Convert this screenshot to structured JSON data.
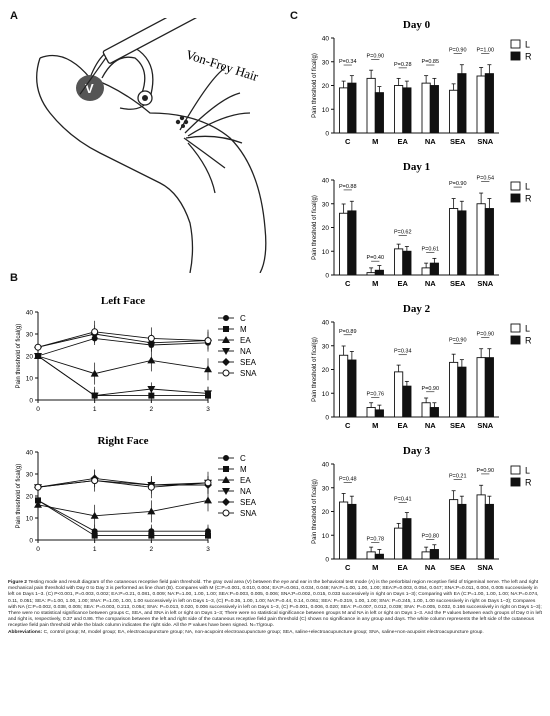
{
  "panels": {
    "A": "A",
    "B": "B",
    "C": "C"
  },
  "illustration": {
    "instrument_label": "Von-Frey Hair",
    "area_label": "V"
  },
  "panel_b": {
    "ylabel": "Pain threshold of ficial(g)",
    "legend": [
      "C",
      "M",
      "EA",
      "NA",
      "SEA",
      "SNA"
    ]
  },
  "chart_data": [
    {
      "type": "line",
      "title": "Left Face",
      "ylabel": "Pain threshold of fical(g)",
      "x": [
        0,
        1,
        2,
        3
      ],
      "ylim": [
        0,
        40
      ],
      "yticks": [
        0,
        10,
        20,
        30,
        40
      ],
      "xticks": [
        0,
        1,
        2,
        3
      ],
      "series": [
        {
          "name": "C",
          "values": [
            20,
            28,
            25,
            26
          ]
        },
        {
          "name": "M",
          "values": [
            20,
            2,
            2,
            2
          ]
        },
        {
          "name": "EA",
          "values": [
            20,
            12,
            18,
            14
          ]
        },
        {
          "name": "NA",
          "values": [
            20,
            2,
            5,
            3
          ]
        },
        {
          "name": "SEA",
          "values": [
            24,
            30,
            26,
            27
          ]
        },
        {
          "name": "SNA",
          "values": [
            24,
            31,
            28,
            27
          ]
        }
      ]
    },
    {
      "type": "line",
      "title": "Right Face",
      "ylabel": "Pain threshold of fical(g)",
      "x": [
        0,
        1,
        2,
        3
      ],
      "ylim": [
        0,
        40
      ],
      "yticks": [
        0,
        10,
        20,
        30,
        40
      ],
      "xticks": [
        0,
        1,
        2,
        3
      ],
      "series": [
        {
          "name": "C",
          "values": [
            18,
            4,
            4,
            4
          ]
        },
        {
          "name": "M",
          "values": [
            18,
            2,
            2,
            2
          ]
        },
        {
          "name": "EA",
          "values": [
            16,
            11,
            13,
            18
          ]
        },
        {
          "name": "NA",
          "values": [
            24,
            27,
            25,
            26
          ]
        },
        {
          "name": "SEA",
          "values": [
            24,
            28,
            25,
            25
          ]
        },
        {
          "name": "SNA",
          "values": [
            24,
            27,
            24,
            26
          ]
        }
      ]
    },
    {
      "type": "bar",
      "title": "Day 0",
      "ylabel": "Pain threshold of fical(g)",
      "categories": [
        "C",
        "M",
        "EA",
        "NA",
        "SEA",
        "SNA"
      ],
      "series": [
        {
          "name": "L",
          "values": [
            19,
            23,
            20,
            21,
            18,
            24
          ]
        },
        {
          "name": "R",
          "values": [
            21,
            17,
            19,
            20,
            25,
            25
          ]
        }
      ],
      "pvalues": [
        "P=0.34",
        "P=0.90",
        "P=0.28",
        "P=0.85",
        "P=0.90",
        "P=1.00"
      ],
      "ylim": [
        0,
        40
      ],
      "yticks": [
        0,
        10,
        20,
        30,
        40
      ]
    },
    {
      "type": "bar",
      "title": "Day 1",
      "ylabel": "Pain threshold of fical(g)",
      "categories": [
        "C",
        "M",
        "EA",
        "NA",
        "SEA",
        "SNA"
      ],
      "series": [
        {
          "name": "L",
          "values": [
            26,
            1,
            11,
            3,
            28,
            30
          ]
        },
        {
          "name": "R",
          "values": [
            27,
            2,
            10,
            5,
            27,
            28
          ]
        }
      ],
      "pvalues": [
        "P=0.88",
        "P=0.40",
        "P=0.62",
        "P=0.61",
        "P=0.90",
        "P=0.54"
      ],
      "ylim": [
        0,
        40
      ],
      "yticks": [
        0,
        10,
        20,
        30,
        40
      ]
    },
    {
      "type": "bar",
      "title": "Day 2",
      "ylabel": "Pain threshold of fical(g)",
      "categories": [
        "C",
        "M",
        "EA",
        "NA",
        "SEA",
        "SNA"
      ],
      "series": [
        {
          "name": "L",
          "values": [
            26,
            4,
            19,
            6,
            23,
            25
          ]
        },
        {
          "name": "R",
          "values": [
            24,
            3,
            13,
            4,
            21,
            25
          ]
        }
      ],
      "pvalues": [
        "P=0.89",
        "P=0.76",
        "P=0.34",
        "P=0.90",
        "P=0.90",
        "P=0.90"
      ],
      "ylim": [
        0,
        40
      ],
      "yticks": [
        0,
        10,
        20,
        30,
        40
      ]
    },
    {
      "type": "bar",
      "title": "Day 3",
      "ylabel": "Pain threshold of fical(g)",
      "categories": [
        "C",
        "M",
        "EA",
        "NA",
        "SEA",
        "SNA"
      ],
      "series": [
        {
          "name": "L",
          "values": [
            24,
            3,
            13,
            3,
            25,
            27
          ]
        },
        {
          "name": "R",
          "values": [
            23,
            2,
            17,
            4,
            23,
            23
          ]
        }
      ],
      "pvalues": [
        "P=0.48",
        "P=0.78",
        "P=0.41",
        "P=0.80",
        "P=0.21",
        "P=0.90"
      ],
      "ylim": [
        0,
        40
      ],
      "yticks": [
        0,
        10,
        20,
        30,
        40
      ]
    }
  ],
  "caption": {
    "lead": "Figure 2",
    "text": "Testing mode and result diagram of the cutaneous receptive field pain threshold. The gray oval area (V) between the eye and ear in the behavioral test mode (A) is the periorbital region receptive field of trigeminal nerve. The left and right mechanical pain threshold with Day 0 to Day 3 is performed as line chart (B). Compares with M (C:P=0.001, 0.010, 0.004; EA:P=0.061, 0.034, 0.048; NA:P=1.00, 1.00, 1.00; SEA:P=0.003, 0.054, 0.047; SNA:P=0.011, 0.004, 0.005 successively in left on Days 1–3. (C) P<0.001, P=0.003, 0.002; EA:P=0.21, 0.081, 0.009; NA:P=1.00, 1.00, 1.00; SEA:P=0.003, 0.005, 0.006; SNA:P=0.002, 0.015, 0.033 successively in right on Days 1–3); Comparing with EA (C:P=1.00, 1.00, 1.00; NA:P=0.074, 0.11, 0.051; SEA: P=1.00, 1.00, 1.00; SNA: P=1.00, 1.00, 1.00 successively in left on Days 1–3, (C) P=0.36, 1.00, 1.00; NA:P=0.44, 0.14, 0.061; SEA: P=0.319, 1.00, 1.00; SNA: P=0.245, 1.00, 1.00 successively in right on Days 1–3); Compares with NA (C:P=0.002, 0.038, 0.005; SEA: P=0.003, 0.213, 0.054; SNA: P=0.013, 0.020, 0.006 successively in left on Days 1–3, (C) P=0.001, 0.006, 0.020; SEA: P=0.007, 0.012, 0.039; SNA: P=0.005, 0.032, 0.166 successively in right on Days 1–3); There were no statistical significance between groups C, SEA, and SNA in left or right on Days 1–3; There were no statistical significance between groups M and NA in left or right on Days 1–3. And the P values between each groups of Day 0 in left and right is, respectively, 0.37 and 0.86. The comparison between the left and right side of the cutaneous receptive field pain threshold (C) shows no significance in any group and days. The white column represents the left side of the cutaneous receptive field pain threshold while the black column indicates the right side. All the P values have been signed. N=7/group.",
    "abbr_head": "Abbreviations:",
    "abbr_text": "C, control group; M, model group; EA, electroacupuncture group; NA, non-acupoint electroacupuncture group; SEA, saline+electroacupuncture group; SNA, saline+non-acupoint electroacupuncture group."
  }
}
